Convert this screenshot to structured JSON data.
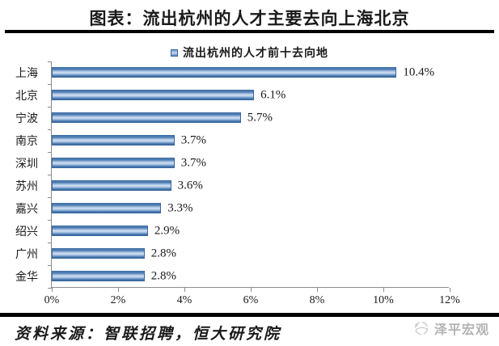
{
  "title": "图表：流出杭州的人才主要去向上海北京",
  "legend": {
    "label": "流出杭州的人才前十去向地",
    "marker_color": "#4f81bd"
  },
  "chart_data": {
    "type": "bar",
    "orientation": "horizontal",
    "title": "流出杭州的人才前十去向地",
    "categories": [
      "上海",
      "北京",
      "宁波",
      "南京",
      "深圳",
      "苏州",
      "嘉兴",
      "绍兴",
      "广州",
      "金华"
    ],
    "values": [
      10.4,
      6.1,
      5.7,
      3.7,
      3.7,
      3.6,
      3.3,
      2.9,
      2.8,
      2.8
    ],
    "value_labels": [
      "10.4%",
      "6.1%",
      "5.7%",
      "3.7%",
      "3.7%",
      "3.6%",
      "3.3%",
      "2.9%",
      "2.8%",
      "2.8%"
    ],
    "x_ticks": [
      "0%",
      "2%",
      "4%",
      "6%",
      "8%",
      "10%",
      "12%"
    ],
    "xlim": [
      0,
      12
    ],
    "xlabel": "",
    "ylabel": "",
    "grid": "off",
    "legend_position": "top-center",
    "bar_color": "#4f81bd"
  },
  "footer": {
    "source": "资料来源：智联招聘，恒大研究院",
    "brand": "泽平宏观"
  }
}
